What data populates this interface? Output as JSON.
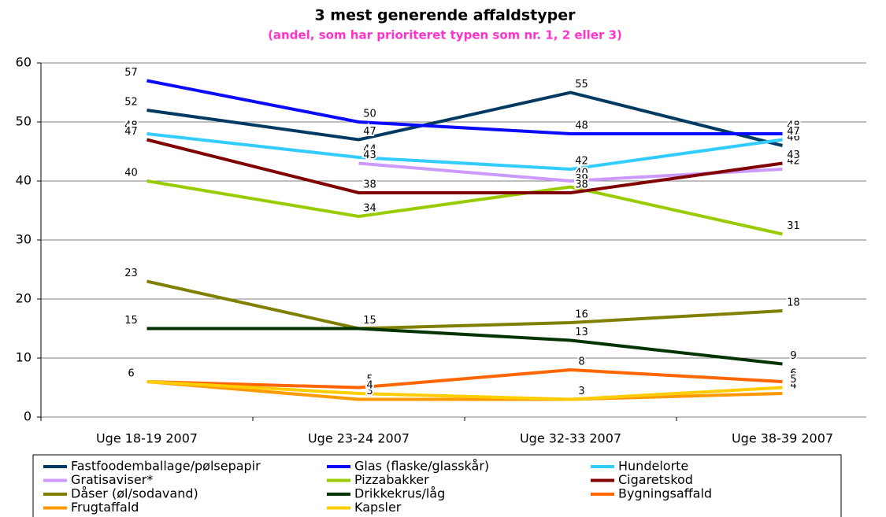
{
  "chart_data": {
    "type": "line",
    "title": "3 mest generende affaldstyper",
    "subtitle": "(andel, som har prioriteret typen som nr. 1, 2 eller 3)",
    "categories": [
      "Uge 18-19 2007",
      "Uge 23-24 2007",
      "Uge 32-33 2007",
      "Uge 38-39 2007"
    ],
    "ylim": [
      0,
      60
    ],
    "yticks": [
      0,
      10,
      20,
      30,
      40,
      50,
      60
    ],
    "grid": true,
    "series": [
      {
        "name": "Fastfoodemballage/pølsepapir",
        "color": "#003a63",
        "values": [
          52,
          47,
          55,
          46
        ]
      },
      {
        "name": "Glas (flaske/glasskår)",
        "color": "#0a0aff",
        "values": [
          57,
          50,
          48,
          48
        ]
      },
      {
        "name": "Hundelorte",
        "color": "#33ccff",
        "values": [
          48,
          44,
          42,
          47
        ]
      },
      {
        "name": "Gratisaviser*",
        "color": "#cc99ff",
        "values": [
          null,
          43,
          40,
          42
        ]
      },
      {
        "name": "Pizzabakker",
        "color": "#99cc00",
        "values": [
          40,
          34,
          39,
          31
        ]
      },
      {
        "name": "Cigaretskod",
        "color": "#800000",
        "values": [
          47,
          38,
          38,
          43
        ]
      },
      {
        "name": "Dåser (øl/sodavand)",
        "color": "#808000",
        "values": [
          23,
          15,
          16,
          18
        ]
      },
      {
        "name": "Drikkekrus/låg",
        "color": "#003300",
        "values": [
          15,
          15,
          13,
          9
        ]
      },
      {
        "name": "Bygningsaffald",
        "color": "#ff6600",
        "values": [
          6,
          5,
          8,
          6
        ]
      },
      {
        "name": "Frugtaffald",
        "color": "#ff9900",
        "values": [
          6,
          3,
          3,
          4
        ]
      },
      {
        "name": "Kapsler",
        "color": "#ffcc00",
        "values": [
          6,
          4,
          3,
          5
        ]
      }
    ]
  }
}
